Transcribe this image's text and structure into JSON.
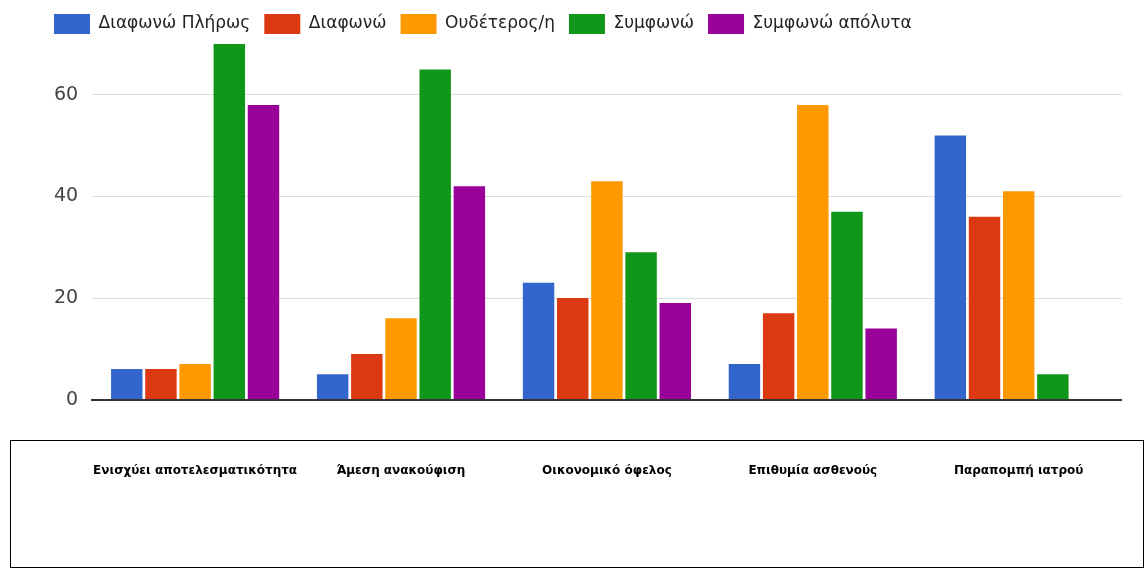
{
  "chart_data": {
    "type": "bar",
    "categories": [
      "Ενισχύει αποτελεσματικότητα",
      "Άμεση ανακούφιση",
      "Οικονομικό όφελος",
      "Επιθυμία ασθενούς",
      "Παραπομπή ιατρού"
    ],
    "series": [
      {
        "name": "Διαφωνώ Πλήρως",
        "color": "#3366cc",
        "values": [
          6,
          5,
          23,
          7,
          52
        ]
      },
      {
        "name": "Διαφωνώ",
        "color": "#dc3912",
        "values": [
          6,
          9,
          20,
          17,
          36
        ]
      },
      {
        "name": "Ουδέτερος/η",
        "color": "#ff9900",
        "values": [
          7,
          16,
          43,
          58,
          41
        ]
      },
      {
        "name": "Συμφωνώ",
        "color": "#109618",
        "values": [
          70,
          65,
          29,
          37,
          5
        ]
      },
      {
        "name": "Συμφωνώ απόλυτα",
        "color": "#990099",
        "values": [
          58,
          42,
          19,
          14,
          0
        ]
      }
    ],
    "ylim": [
      0,
      70
    ],
    "yticks": [
      0,
      20,
      40,
      60
    ],
    "grid": "y",
    "legend": "top left"
  }
}
